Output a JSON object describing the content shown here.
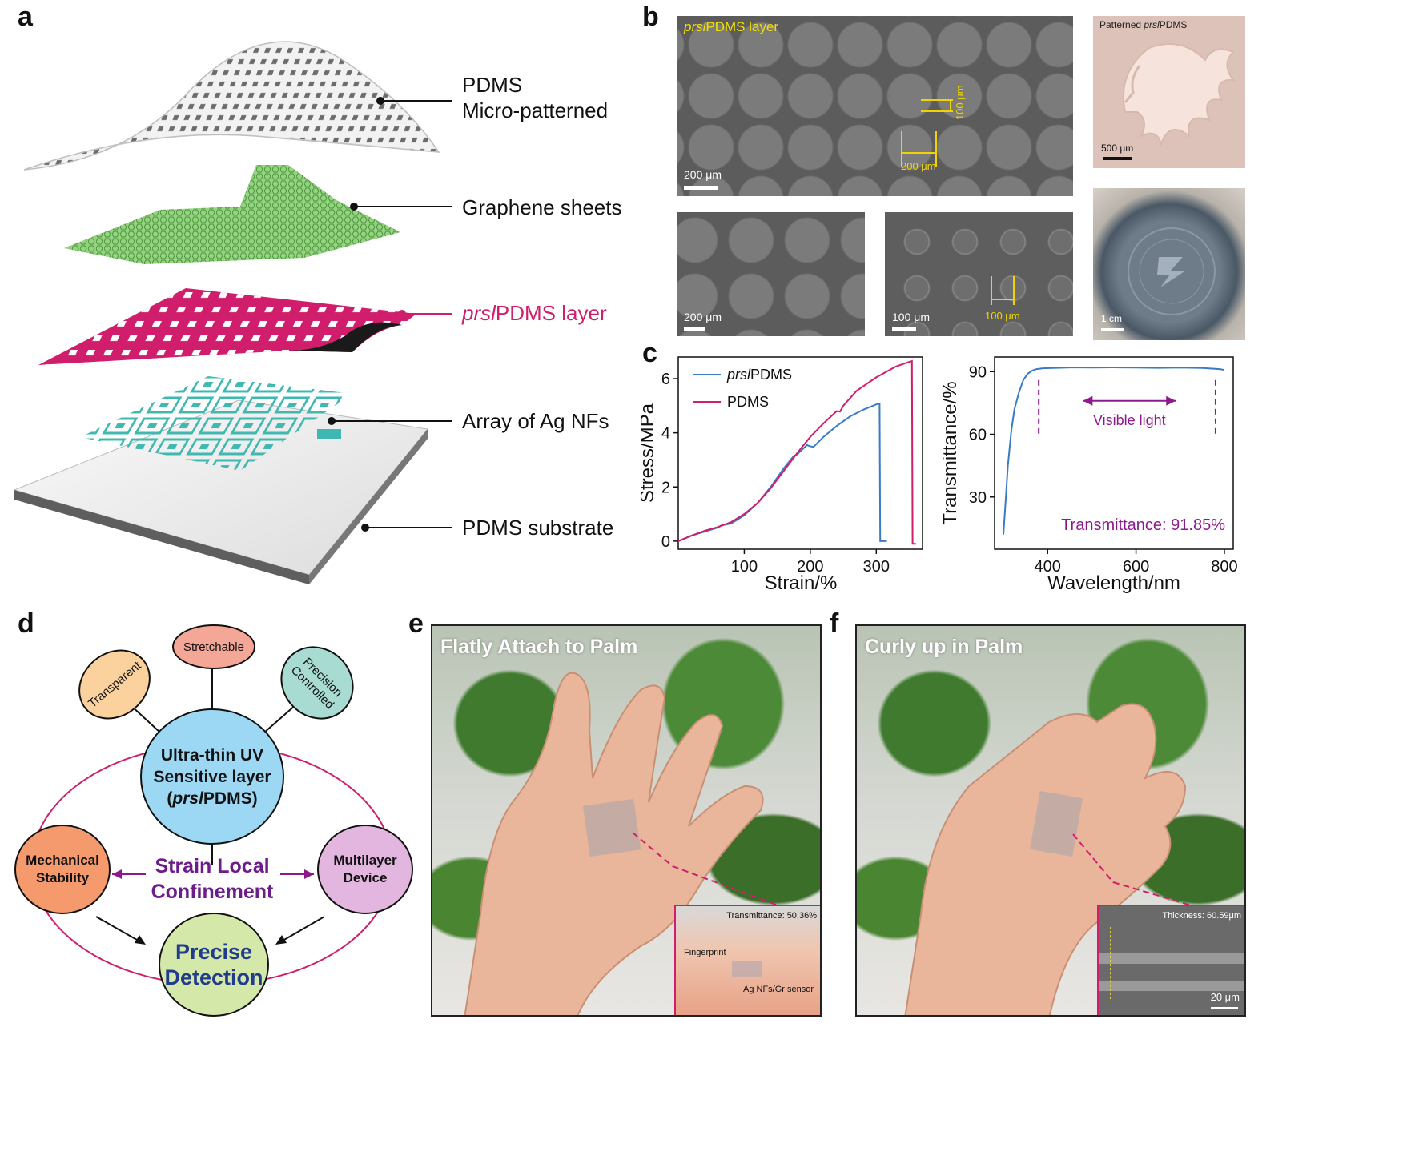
{
  "panels": {
    "a": {
      "letter": "a",
      "labels": {
        "top_line1": "PDMS",
        "top_line2": "Micro-patterned",
        "graphene": "Graphene sheets",
        "prsl_italic": "prsl",
        "prsl_rest": "PDMS layer",
        "ag": "Array of Ag NFs",
        "substrate": "PDMS substrate"
      }
    },
    "b": {
      "letter": "b",
      "top_title_italic": "prsl",
      "top_title_rest": "PDMS layer",
      "top_scale": "200 μm",
      "dim_height": "100 μm",
      "dim_width": "200 μm",
      "bl_scale": "200 μm",
      "br_scale": "100 μm",
      "br_dim": "100 μm",
      "patterned_prefix": "Patterned ",
      "patterned_italic": "prsl",
      "patterned_rest": "PDMS",
      "patterned_scale": "500 μm",
      "wafer_scale": "1 cm"
    },
    "c": {
      "letter": "c"
    },
    "d": {
      "letter": "d",
      "center_line1": "Ultra-thin UV",
      "center_line2": "Sensitive layer",
      "center_line3_open": "(",
      "center_line3_italic": "prsl",
      "center_line3_rest": "PDMS)",
      "stretchable": "Stretchable",
      "transparent": "Transparent",
      "precision_line1": "Precision",
      "precision_line2": "Controlled",
      "mechanical_line1": "Mechanical",
      "mechanical_line2": "Stability",
      "multilayer_line1": "Multilayer",
      "multilayer_line2": "Device",
      "strain_line1": "Strain Local",
      "strain_line2": "Confinement",
      "precise_line1": "Precise",
      "precise_line2": "Detection"
    },
    "e": {
      "letter": "e",
      "title": "Flatly Attach to Palm",
      "inset_transmittance": "Transmittance: 50.36%",
      "inset_fingerprint": "Fingerprint",
      "inset_sensor": "Ag NFs/Gr sensor"
    },
    "f": {
      "letter": "f",
      "title": "Curly up in Palm",
      "inset_thickness": "Thickness: 60.59μm",
      "inset_scale": "20 μm"
    }
  },
  "chart_data": [
    {
      "type": "line",
      "xlabel": "Strain/%",
      "ylabel": "Stress/MPa",
      "xlim": [
        0,
        370
      ],
      "ylim": [
        -0.3,
        6.8
      ],
      "xticks": [
        100,
        200,
        300
      ],
      "yticks": [
        0,
        2,
        4,
        6
      ],
      "legend_position": "top-left",
      "series": [
        {
          "name": "prsl/PDMS",
          "name_italic": "prsl",
          "name_rest": "PDMS",
          "color": "#3a7bc8",
          "x": [
            0,
            20,
            40,
            60,
            65,
            80,
            100,
            120,
            140,
            160,
            175,
            180,
            195,
            200,
            205,
            220,
            240,
            260,
            280,
            300,
            305,
            306,
            316
          ],
          "y": [
            0,
            0.2,
            0.35,
            0.5,
            0.58,
            0.65,
            0.95,
            1.4,
            2.0,
            2.7,
            3.15,
            3.2,
            3.55,
            3.5,
            3.48,
            3.85,
            4.25,
            4.6,
            4.85,
            5.05,
            5.08,
            0.0,
            0.0
          ]
        },
        {
          "name": "PDMS",
          "color": "#d01e6c",
          "x": [
            0,
            20,
            40,
            60,
            80,
            100,
            120,
            140,
            160,
            180,
            200,
            220,
            240,
            245,
            250,
            270,
            300,
            330,
            350,
            354,
            355,
            360
          ],
          "y": [
            0,
            0.2,
            0.38,
            0.52,
            0.7,
            1.0,
            1.4,
            1.95,
            2.6,
            3.25,
            3.85,
            4.35,
            4.8,
            4.78,
            5.0,
            5.55,
            6.05,
            6.45,
            6.62,
            6.65,
            -0.1,
            -0.1
          ]
        }
      ]
    },
    {
      "type": "line",
      "xlabel": "Wavelength/nm",
      "ylabel": "Transmittance/%",
      "xlim": [
        280,
        820
      ],
      "ylim": [
        5,
        97
      ],
      "xticks": [
        400,
        600,
        800
      ],
      "yticks": [
        30,
        60,
        90
      ],
      "annotation_range": "Visible light",
      "annotation_value": "Transmittance: 91.85%",
      "visible_range_nm": [
        380,
        780
      ],
      "series": [
        {
          "color": "#3a7bc8",
          "x": [
            300,
            305,
            310,
            318,
            325,
            335,
            345,
            355,
            365,
            375,
            390,
            420,
            460,
            500,
            550,
            600,
            650,
            700,
            750,
            790,
            800
          ],
          "y": [
            12,
            28,
            45,
            62,
            72,
            80,
            86,
            89,
            90.5,
            91.2,
            91.6,
            91.8,
            92.0,
            91.9,
            92.0,
            91.9,
            91.8,
            91.9,
            91.7,
            91.2,
            90.8
          ]
        }
      ]
    }
  ]
}
